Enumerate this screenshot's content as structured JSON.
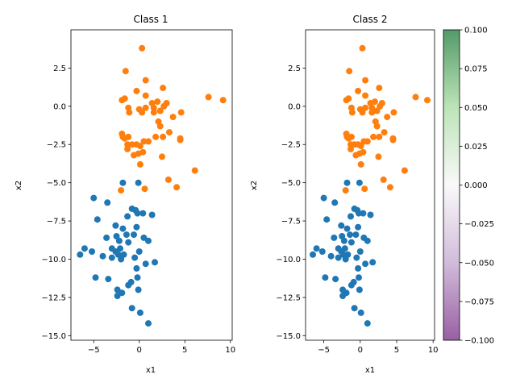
{
  "chart_data": [
    {
      "type": "scatter",
      "title": "Class 1",
      "xlabel": "x1",
      "ylabel": "x2",
      "xlim": [
        -7.5,
        10.2
      ],
      "ylim": [
        -15.3,
        5.0
      ],
      "xticks": [
        -5,
        0,
        5,
        10
      ],
      "yticks": [
        -15.0,
        -12.5,
        -10.0,
        -7.5,
        -5.0,
        -2.5,
        0.0,
        2.5
      ],
      "grid": false,
      "series": [
        {
          "color": "#1f77b4",
          "points": [
            [
              -6.5,
              -9.7
            ],
            [
              -6.0,
              -9.3
            ],
            [
              -5.2,
              -9.5
            ],
            [
              -4.8,
              -11.2
            ],
            [
              -5.0,
              -6.0
            ],
            [
              -4.6,
              -7.4
            ],
            [
              -4.0,
              -9.8
            ],
            [
              -3.6,
              -8.6
            ],
            [
              -3.4,
              -11.3
            ],
            [
              -3.5,
              -6.3
            ],
            [
              -3.0,
              -9.3
            ],
            [
              -3.0,
              -9.9
            ],
            [
              -2.6,
              -9.5
            ],
            [
              -2.6,
              -7.8
            ],
            [
              -2.5,
              -8.5
            ],
            [
              -2.4,
              -12.0
            ],
            [
              -2.4,
              -12.4
            ],
            [
              -2.3,
              -9.7
            ],
            [
              -2.2,
              -8.8
            ],
            [
              -2.1,
              -9.3
            ],
            [
              -2.0,
              -10.0
            ],
            [
              -1.9,
              -12.2
            ],
            [
              -1.8,
              -8.0
            ],
            [
              -1.8,
              -5.0
            ],
            [
              -1.7,
              -9.7
            ],
            [
              -1.4,
              -8.4
            ],
            [
              -1.3,
              -7.2
            ],
            [
              -1.2,
              -8.9
            ],
            [
              -1.2,
              -11.7
            ],
            [
              -0.9,
              -11.5
            ],
            [
              -0.8,
              -6.7
            ],
            [
              -0.8,
              -13.2
            ],
            [
              -0.6,
              -8.4
            ],
            [
              -0.5,
              -9.9
            ],
            [
              -0.4,
              -6.8
            ],
            [
              -0.3,
              -7.9
            ],
            [
              -0.2,
              -11.2
            ],
            [
              -0.1,
              -5.0
            ],
            [
              0.0,
              -9.5
            ],
            [
              -0.1,
              -12.0
            ],
            [
              0.1,
              -13.5
            ],
            [
              0.4,
              -7.0
            ],
            [
              0.5,
              -8.6
            ],
            [
              0.7,
              -10.3
            ],
            [
              1.0,
              -14.2
            ],
            [
              1.0,
              -8.8
            ],
            [
              1.4,
              -7.1
            ],
            [
              1.7,
              -10.2
            ],
            [
              -0.2,
              -7.0
            ],
            [
              -0.3,
              -10.6
            ]
          ]
        },
        {
          "color": "#ff7f0e",
          "points": [
            [
              0.3,
              3.8
            ],
            [
              -1.5,
              2.3
            ],
            [
              0.7,
              1.7
            ],
            [
              -1.6,
              0.5
            ],
            [
              -1.9,
              0.4
            ],
            [
              -1.2,
              -0.1
            ],
            [
              -1.1,
              -0.4
            ],
            [
              -0.3,
              1.0
            ],
            [
              0.7,
              0.7
            ],
            [
              2.6,
              1.2
            ],
            [
              1.4,
              0.2
            ],
            [
              1.6,
              -0.1
            ],
            [
              2.0,
              0.3
            ],
            [
              2.3,
              -0.3
            ],
            [
              2.7,
              0.0
            ],
            [
              3.0,
              0.2
            ],
            [
              3.7,
              -0.7
            ],
            [
              4.6,
              -0.4
            ],
            [
              7.6,
              0.6
            ],
            [
              9.2,
              0.4
            ],
            [
              0.0,
              -0.2
            ],
            [
              0.3,
              -0.4
            ],
            [
              0.7,
              -0.1
            ],
            [
              1.6,
              -0.4
            ],
            [
              2.1,
              -1.0
            ],
            [
              2.3,
              -1.3
            ],
            [
              3.3,
              -1.7
            ],
            [
              4.5,
              -2.1
            ],
            [
              4.5,
              -2.2
            ],
            [
              -1.9,
              -1.8
            ],
            [
              -1.8,
              -2.0
            ],
            [
              -1.6,
              -2.1
            ],
            [
              -1.2,
              -2.0
            ],
            [
              -1.3,
              -2.5
            ],
            [
              -1.3,
              -2.8
            ],
            [
              -0.8,
              -2.5
            ],
            [
              -0.6,
              -3.2
            ],
            [
              -0.3,
              -2.5
            ],
            [
              0.1,
              -2.6
            ],
            [
              0.5,
              -2.3
            ],
            [
              1.0,
              -2.3
            ],
            [
              1.8,
              -2.0
            ],
            [
              2.6,
              -2.0
            ],
            [
              -0.1,
              -3.1
            ],
            [
              0.4,
              -3.0
            ],
            [
              2.5,
              -3.3
            ],
            [
              0.1,
              -3.8
            ],
            [
              3.2,
              -4.8
            ],
            [
              6.1,
              -4.2
            ],
            [
              4.1,
              -5.3
            ],
            [
              -2.0,
              -5.5
            ],
            [
              0.6,
              -5.4
            ]
          ]
        }
      ]
    },
    {
      "type": "scatter",
      "title": "Class 2",
      "xlabel": "x1",
      "ylabel": "x2",
      "xlim": [
        -7.5,
        10.2
      ],
      "ylim": [
        -15.3,
        5.0
      ],
      "xticks": [
        -5,
        0,
        5,
        10
      ],
      "yticks": [
        -15.0,
        -12.5,
        -10.0,
        -7.5,
        -5.0,
        -2.5,
        0.0,
        2.5
      ],
      "grid": false,
      "series": [
        {
          "color": "#1f77b4",
          "points": [
            [
              -6.5,
              -9.7
            ],
            [
              -6.0,
              -9.3
            ],
            [
              -5.2,
              -9.5
            ],
            [
              -4.8,
              -11.2
            ],
            [
              -5.0,
              -6.0
            ],
            [
              -4.6,
              -7.4
            ],
            [
              -4.0,
              -9.8
            ],
            [
              -3.6,
              -8.6
            ],
            [
              -3.4,
              -11.3
            ],
            [
              -3.5,
              -6.3
            ],
            [
              -3.0,
              -9.3
            ],
            [
              -3.0,
              -9.9
            ],
            [
              -2.6,
              -9.5
            ],
            [
              -2.6,
              -7.8
            ],
            [
              -2.5,
              -8.5
            ],
            [
              -2.4,
              -12.0
            ],
            [
              -2.4,
              -12.4
            ],
            [
              -2.3,
              -9.7
            ],
            [
              -2.2,
              -8.8
            ],
            [
              -2.1,
              -9.3
            ],
            [
              -2.0,
              -10.0
            ],
            [
              -1.9,
              -12.2
            ],
            [
              -1.8,
              -8.0
            ],
            [
              -1.8,
              -5.0
            ],
            [
              -1.7,
              -9.7
            ],
            [
              -1.4,
              -8.4
            ],
            [
              -1.3,
              -7.2
            ],
            [
              -1.2,
              -8.9
            ],
            [
              -1.2,
              -11.7
            ],
            [
              -0.9,
              -11.5
            ],
            [
              -0.8,
              -6.7
            ],
            [
              -0.8,
              -13.2
            ],
            [
              -0.6,
              -8.4
            ],
            [
              -0.5,
              -9.9
            ],
            [
              -0.4,
              -6.8
            ],
            [
              -0.3,
              -7.9
            ],
            [
              -0.2,
              -11.2
            ],
            [
              -0.1,
              -5.0
            ],
            [
              0.0,
              -9.5
            ],
            [
              -0.1,
              -12.0
            ],
            [
              0.1,
              -13.5
            ],
            [
              0.4,
              -7.0
            ],
            [
              0.5,
              -8.6
            ],
            [
              0.7,
              -10.3
            ],
            [
              1.0,
              -14.2
            ],
            [
              1.0,
              -8.8
            ],
            [
              1.4,
              -7.1
            ],
            [
              1.7,
              -10.2
            ],
            [
              -0.2,
              -7.0
            ],
            [
              -0.3,
              -10.6
            ]
          ]
        },
        {
          "color": "#ff7f0e",
          "points": [
            [
              0.3,
              3.8
            ],
            [
              -1.5,
              2.3
            ],
            [
              0.7,
              1.7
            ],
            [
              -1.6,
              0.5
            ],
            [
              -1.9,
              0.4
            ],
            [
              -1.2,
              -0.1
            ],
            [
              -1.1,
              -0.4
            ],
            [
              -0.3,
              1.0
            ],
            [
              0.7,
              0.7
            ],
            [
              2.6,
              1.2
            ],
            [
              1.4,
              0.2
            ],
            [
              1.6,
              -0.1
            ],
            [
              2.0,
              0.3
            ],
            [
              2.3,
              -0.3
            ],
            [
              2.7,
              0.0
            ],
            [
              3.0,
              0.2
            ],
            [
              3.7,
              -0.7
            ],
            [
              4.6,
              -0.4
            ],
            [
              7.6,
              0.6
            ],
            [
              9.2,
              0.4
            ],
            [
              0.0,
              -0.2
            ],
            [
              0.3,
              -0.4
            ],
            [
              0.7,
              -0.1
            ],
            [
              1.6,
              -0.4
            ],
            [
              2.1,
              -1.0
            ],
            [
              2.3,
              -1.3
            ],
            [
              3.3,
              -1.7
            ],
            [
              4.5,
              -2.1
            ],
            [
              4.5,
              -2.2
            ],
            [
              -1.9,
              -1.8
            ],
            [
              -1.8,
              -2.0
            ],
            [
              -1.6,
              -2.1
            ],
            [
              -1.2,
              -2.0
            ],
            [
              -1.3,
              -2.5
            ],
            [
              -1.3,
              -2.8
            ],
            [
              -0.8,
              -2.5
            ],
            [
              -0.6,
              -3.2
            ],
            [
              -0.3,
              -2.5
            ],
            [
              0.1,
              -2.6
            ],
            [
              0.5,
              -2.3
            ],
            [
              1.0,
              -2.3
            ],
            [
              1.8,
              -2.0
            ],
            [
              2.6,
              -2.0
            ],
            [
              -0.1,
              -3.1
            ],
            [
              0.4,
              -3.0
            ],
            [
              2.5,
              -3.3
            ],
            [
              0.1,
              -3.8
            ],
            [
              3.2,
              -4.8
            ],
            [
              6.1,
              -4.2
            ],
            [
              4.1,
              -5.3
            ],
            [
              -2.0,
              -5.5
            ],
            [
              0.6,
              -5.4
            ]
          ]
        }
      ]
    },
    {
      "type": "colorbar",
      "range": [
        -0.1,
        0.1
      ],
      "tick_values": [
        -0.1,
        -0.075,
        -0.05,
        -0.025,
        0.0,
        0.025,
        0.05,
        0.075,
        0.1
      ],
      "tick_labels": [
        "−0.100",
        "−0.075",
        "−0.050",
        "−0.025",
        "0.000",
        "0.025",
        "0.050",
        "0.075",
        "0.100"
      ],
      "colormap": "PRGn",
      "colors": [
        "#762a83",
        "#c2a5cf",
        "#f7f7f7",
        "#a6dba0",
        "#1b7837"
      ],
      "alpha": 0.75
    }
  ]
}
